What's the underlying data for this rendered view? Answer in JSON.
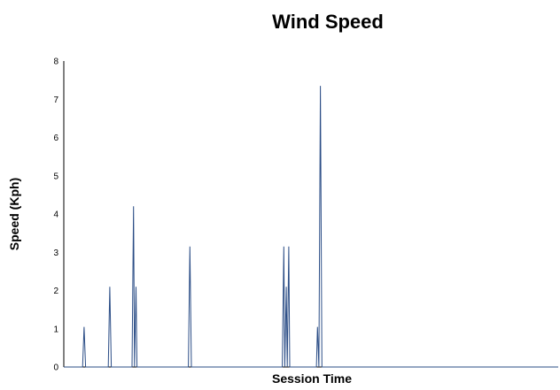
{
  "chart_data": {
    "type": "line",
    "title": "Wind Speed",
    "xlabel": "Session Time",
    "ylabel": "Speed (Kph)",
    "ylim": [
      0,
      8
    ],
    "yticks": [
      "0",
      "1",
      "2",
      "3",
      "4",
      "5",
      "6",
      "7",
      "8"
    ],
    "xlim": [
      0,
      1000
    ],
    "grid": false,
    "legend": "none",
    "series": [
      {
        "color": "#2b4d86",
        "x": [
          0,
          38,
          41,
          44,
          90,
          93,
          96,
          138,
          141,
          143,
          146,
          148,
          151,
          252,
          255,
          258,
          442,
          445,
          447,
          450,
          452,
          455,
          457,
          460,
          500,
          511,
          513,
          516,
          519,
          522,
          1000
        ],
        "y": [
          0,
          0,
          1.05,
          0,
          0,
          2.1,
          0,
          0,
          4.2,
          0,
          2.1,
          0,
          0,
          0,
          3.15,
          0,
          0,
          3.15,
          0,
          2.1,
          0,
          3.15,
          0,
          0,
          0,
          0,
          1.05,
          0,
          7.35,
          0,
          0
        ]
      }
    ]
  }
}
